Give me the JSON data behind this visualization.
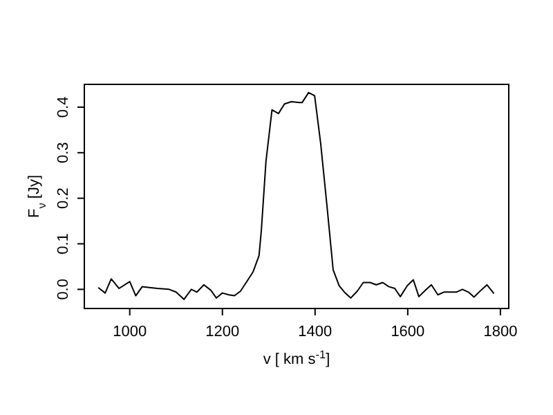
{
  "chart_data": {
    "type": "line",
    "xlabel": "v [ km s$^{-1}$]",
    "ylabel": "F$_{ν}$ [Jy]",
    "x": [
      932,
      947,
      960,
      977,
      1000,
      1013,
      1027,
      1043,
      1060,
      1085,
      1100,
      1117,
      1133,
      1145,
      1160,
      1175,
      1187,
      1200,
      1214,
      1226,
      1239,
      1252,
      1266,
      1279,
      1284,
      1294,
      1307,
      1321,
      1334,
      1349,
      1366,
      1372,
      1386,
      1399,
      1412,
      1426,
      1439,
      1452,
      1464,
      1477,
      1491,
      1504,
      1519,
      1532,
      1546,
      1559,
      1572,
      1584,
      1599,
      1612,
      1624,
      1639,
      1651,
      1665,
      1678,
      1691,
      1705,
      1718,
      1731,
      1743,
      1758,
      1771,
      1786
    ],
    "series": [
      {
        "color": "#000000",
        "values": [
          0.004,
          -0.008,
          0.023,
          0.002,
          0.017,
          -0.014,
          0.006,
          0.004,
          0.002,
          0.0,
          -0.006,
          -0.022,
          0.0,
          -0.006,
          0.01,
          -0.002,
          -0.019,
          -0.008,
          -0.012,
          -0.014,
          -0.004,
          0.016,
          0.038,
          0.074,
          0.129,
          0.281,
          0.394,
          0.386,
          0.407,
          0.412,
          0.41,
          0.41,
          0.432,
          0.425,
          0.321,
          0.18,
          0.043,
          0.008,
          -0.007,
          -0.019,
          -0.004,
          0.015,
          0.015,
          0.01,
          0.015,
          0.006,
          0.002,
          -0.016,
          0.008,
          0.021,
          -0.016,
          -0.001,
          0.01,
          -0.012,
          -0.006,
          -0.006,
          -0.006,
          0.0,
          -0.006,
          -0.017,
          -0.002,
          0.01,
          -0.009
        ]
      }
    ],
    "xlim": [
      902,
      1818
    ],
    "ylim": [
      -0.042,
      0.45
    ],
    "xticks": [
      1000,
      1200,
      1400,
      1600,
      1800
    ],
    "yticks": [
      {
        "value": 0,
        "label": "0.0"
      },
      0.1,
      0.2,
      0.3,
      0.4
    ],
    "grid": false,
    "marker": "none",
    "line_style": "solid"
  }
}
